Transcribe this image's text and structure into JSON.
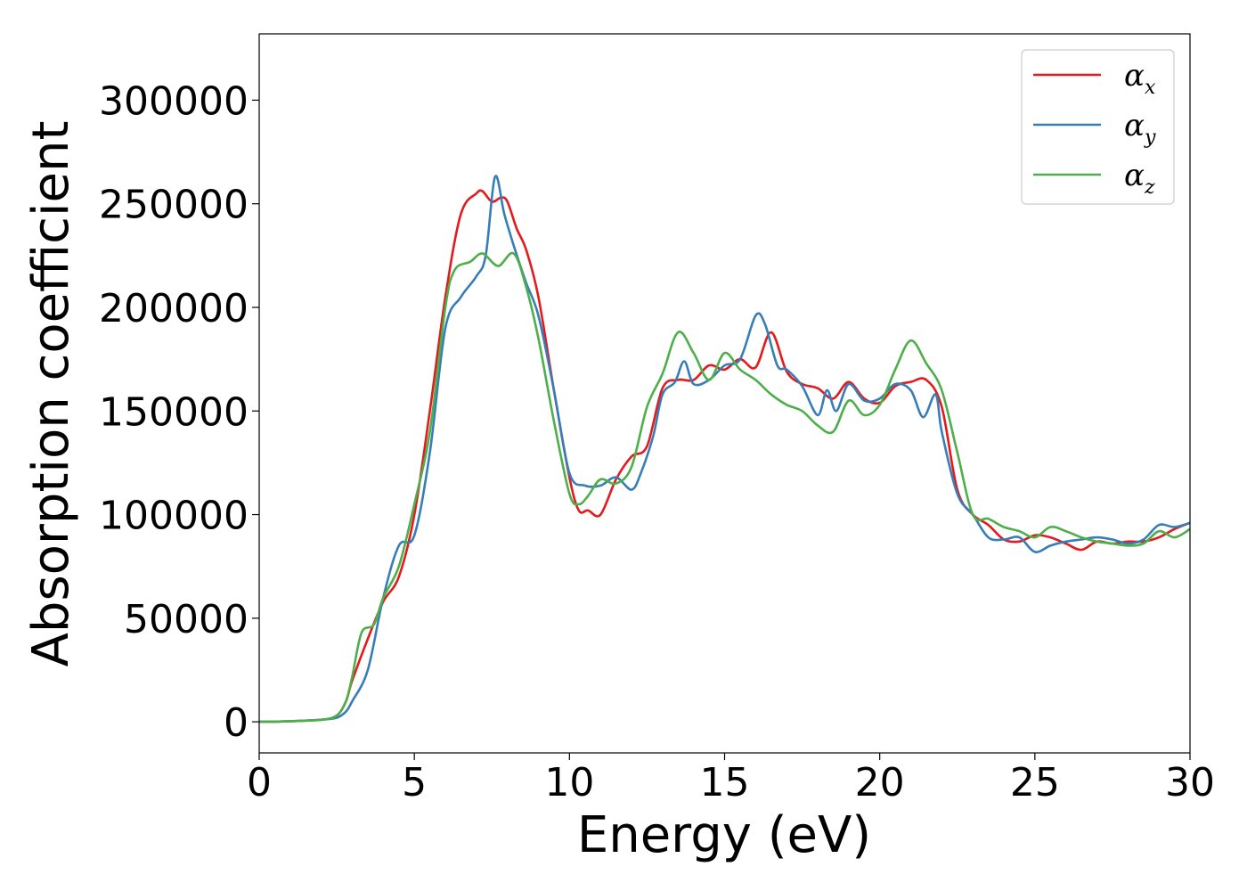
{
  "chart_data": {
    "type": "line",
    "title": "",
    "xlabel": "Energy (eV)",
    "ylabel": "Absorption coefficient",
    "xlim": [
      0,
      30
    ],
    "ylim": [
      -15000,
      332000
    ],
    "xticks": [
      0,
      5,
      10,
      15,
      20,
      25,
      30
    ],
    "xtick_labels": [
      "0",
      "5",
      "10",
      "15",
      "20",
      "25",
      "30"
    ],
    "yticks": [
      0,
      50000,
      100000,
      150000,
      200000,
      250000,
      300000
    ],
    "ytick_labels": [
      "0",
      "50000",
      "100000",
      "150000",
      "200000",
      "250000",
      "300000"
    ],
    "grid": false,
    "legend_position": "top-right",
    "series": [
      {
        "name": "αx",
        "base": "α",
        "sub": "x",
        "color": "#e41a1c",
        "x": [
          0,
          1,
          2,
          2.5,
          2.8,
          3,
          3.5,
          4,
          4.5,
          5,
          5.5,
          6,
          6.5,
          7,
          7.2,
          7.5,
          7.8,
          8,
          8.3,
          8.6,
          9,
          9.5,
          10,
          10.3,
          10.6,
          11,
          11.5,
          12,
          12.5,
          13,
          13.5,
          14,
          14.5,
          15,
          15.5,
          16,
          16.5,
          17,
          17.5,
          18,
          18.5,
          19,
          19.5,
          20,
          20.5,
          21,
          21.5,
          22,
          22.5,
          23,
          23.5,
          24,
          24.5,
          25,
          25.5,
          26,
          26.5,
          27,
          27.5,
          28,
          28.5,
          29,
          29.5,
          30
        ],
        "y": [
          0,
          300,
          1000,
          3000,
          10000,
          20000,
          40000,
          58000,
          70000,
          100000,
          150000,
          205000,
          245000,
          255000,
          256000,
          251000,
          253000,
          251000,
          238000,
          228000,
          205000,
          160000,
          118000,
          102000,
          102000,
          100000,
          117000,
          128000,
          133000,
          161000,
          165000,
          165000,
          172000,
          170000,
          175000,
          171000,
          188000,
          169000,
          163000,
          161000,
          156000,
          164000,
          156000,
          154000,
          162000,
          164000,
          165000,
          152000,
          112000,
          100000,
          95000,
          88000,
          87000,
          90000,
          89000,
          86000,
          83000,
          87000,
          86000,
          87000,
          87000,
          89000,
          93000,
          96000
        ]
      },
      {
        "name": "αy",
        "base": "α",
        "sub": "y",
        "color": "#377eb8",
        "x": [
          0,
          1,
          2,
          2.5,
          2.8,
          3,
          3.5,
          4,
          4.5,
          5,
          5.5,
          6,
          6.5,
          7,
          7.3,
          7.6,
          7.9,
          8.2,
          8.6,
          9,
          9.5,
          10,
          10.5,
          11,
          11.5,
          12,
          12.3,
          12.7,
          13,
          13.4,
          13.7,
          14,
          14.5,
          15,
          15.5,
          16,
          16.3,
          16.7,
          17,
          17.5,
          18,
          18.3,
          18.6,
          19,
          19.5,
          20,
          20.5,
          21,
          21.4,
          21.8,
          22,
          22.5,
          23,
          23.5,
          24,
          24.5,
          25,
          25.5,
          26,
          26.5,
          27,
          27.5,
          28,
          28.5,
          29,
          29.5,
          30
        ],
        "y": [
          0,
          300,
          1000,
          2000,
          5000,
          10000,
          25000,
          60000,
          85000,
          90000,
          130000,
          190000,
          205000,
          215000,
          225000,
          263000,
          245000,
          230000,
          212000,
          196000,
          160000,
          120000,
          114000,
          114000,
          118000,
          112000,
          120000,
          138000,
          158000,
          164000,
          174000,
          163000,
          165000,
          172000,
          175000,
          196000,
          192000,
          172000,
          170000,
          162000,
          148000,
          160000,
          150000,
          163000,
          155000,
          156000,
          163000,
          160000,
          147000,
          158000,
          140000,
          110000,
          100000,
          89000,
          88000,
          89000,
          82000,
          85000,
          87000,
          88000,
          89000,
          88000,
          86000,
          88000,
          95000,
          94000,
          96000
        ]
      },
      {
        "name": "αz",
        "base": "α",
        "sub": "z",
        "color": "#4daf4a",
        "x": [
          0,
          1,
          2,
          2.5,
          2.8,
          3,
          3.3,
          3.7,
          4,
          4.5,
          5,
          5.5,
          6,
          6.3,
          6.8,
          7.2,
          7.7,
          8.2,
          8.6,
          9,
          9.5,
          10,
          10.3,
          10.6,
          11,
          11.5,
          12,
          12.5,
          13,
          13.5,
          14,
          14.5,
          15,
          15.5,
          16,
          16.5,
          17,
          17.5,
          18,
          18.5,
          19,
          19.5,
          20,
          20.5,
          21,
          21.5,
          22,
          22.5,
          23,
          23.5,
          24,
          24.5,
          25,
          25.5,
          26,
          26.5,
          27,
          27.5,
          28,
          28.5,
          29,
          29.5,
          30
        ],
        "y": [
          0,
          300,
          1000,
          3000,
          10000,
          22000,
          43000,
          47000,
          60000,
          75000,
          105000,
          140000,
          200000,
          218000,
          222000,
          226000,
          220000,
          226000,
          210000,
          185000,
          145000,
          110000,
          105000,
          109000,
          117000,
          115000,
          123000,
          152000,
          168000,
          188000,
          178000,
          165000,
          178000,
          170000,
          165000,
          158000,
          153000,
          150000,
          143000,
          140000,
          155000,
          148000,
          153000,
          170000,
          184000,
          173000,
          160000,
          130000,
          100000,
          98000,
          94000,
          92000,
          89000,
          94000,
          92000,
          89000,
          87000,
          86000,
          85000,
          86000,
          92000,
          89000,
          93000
        ]
      }
    ]
  }
}
